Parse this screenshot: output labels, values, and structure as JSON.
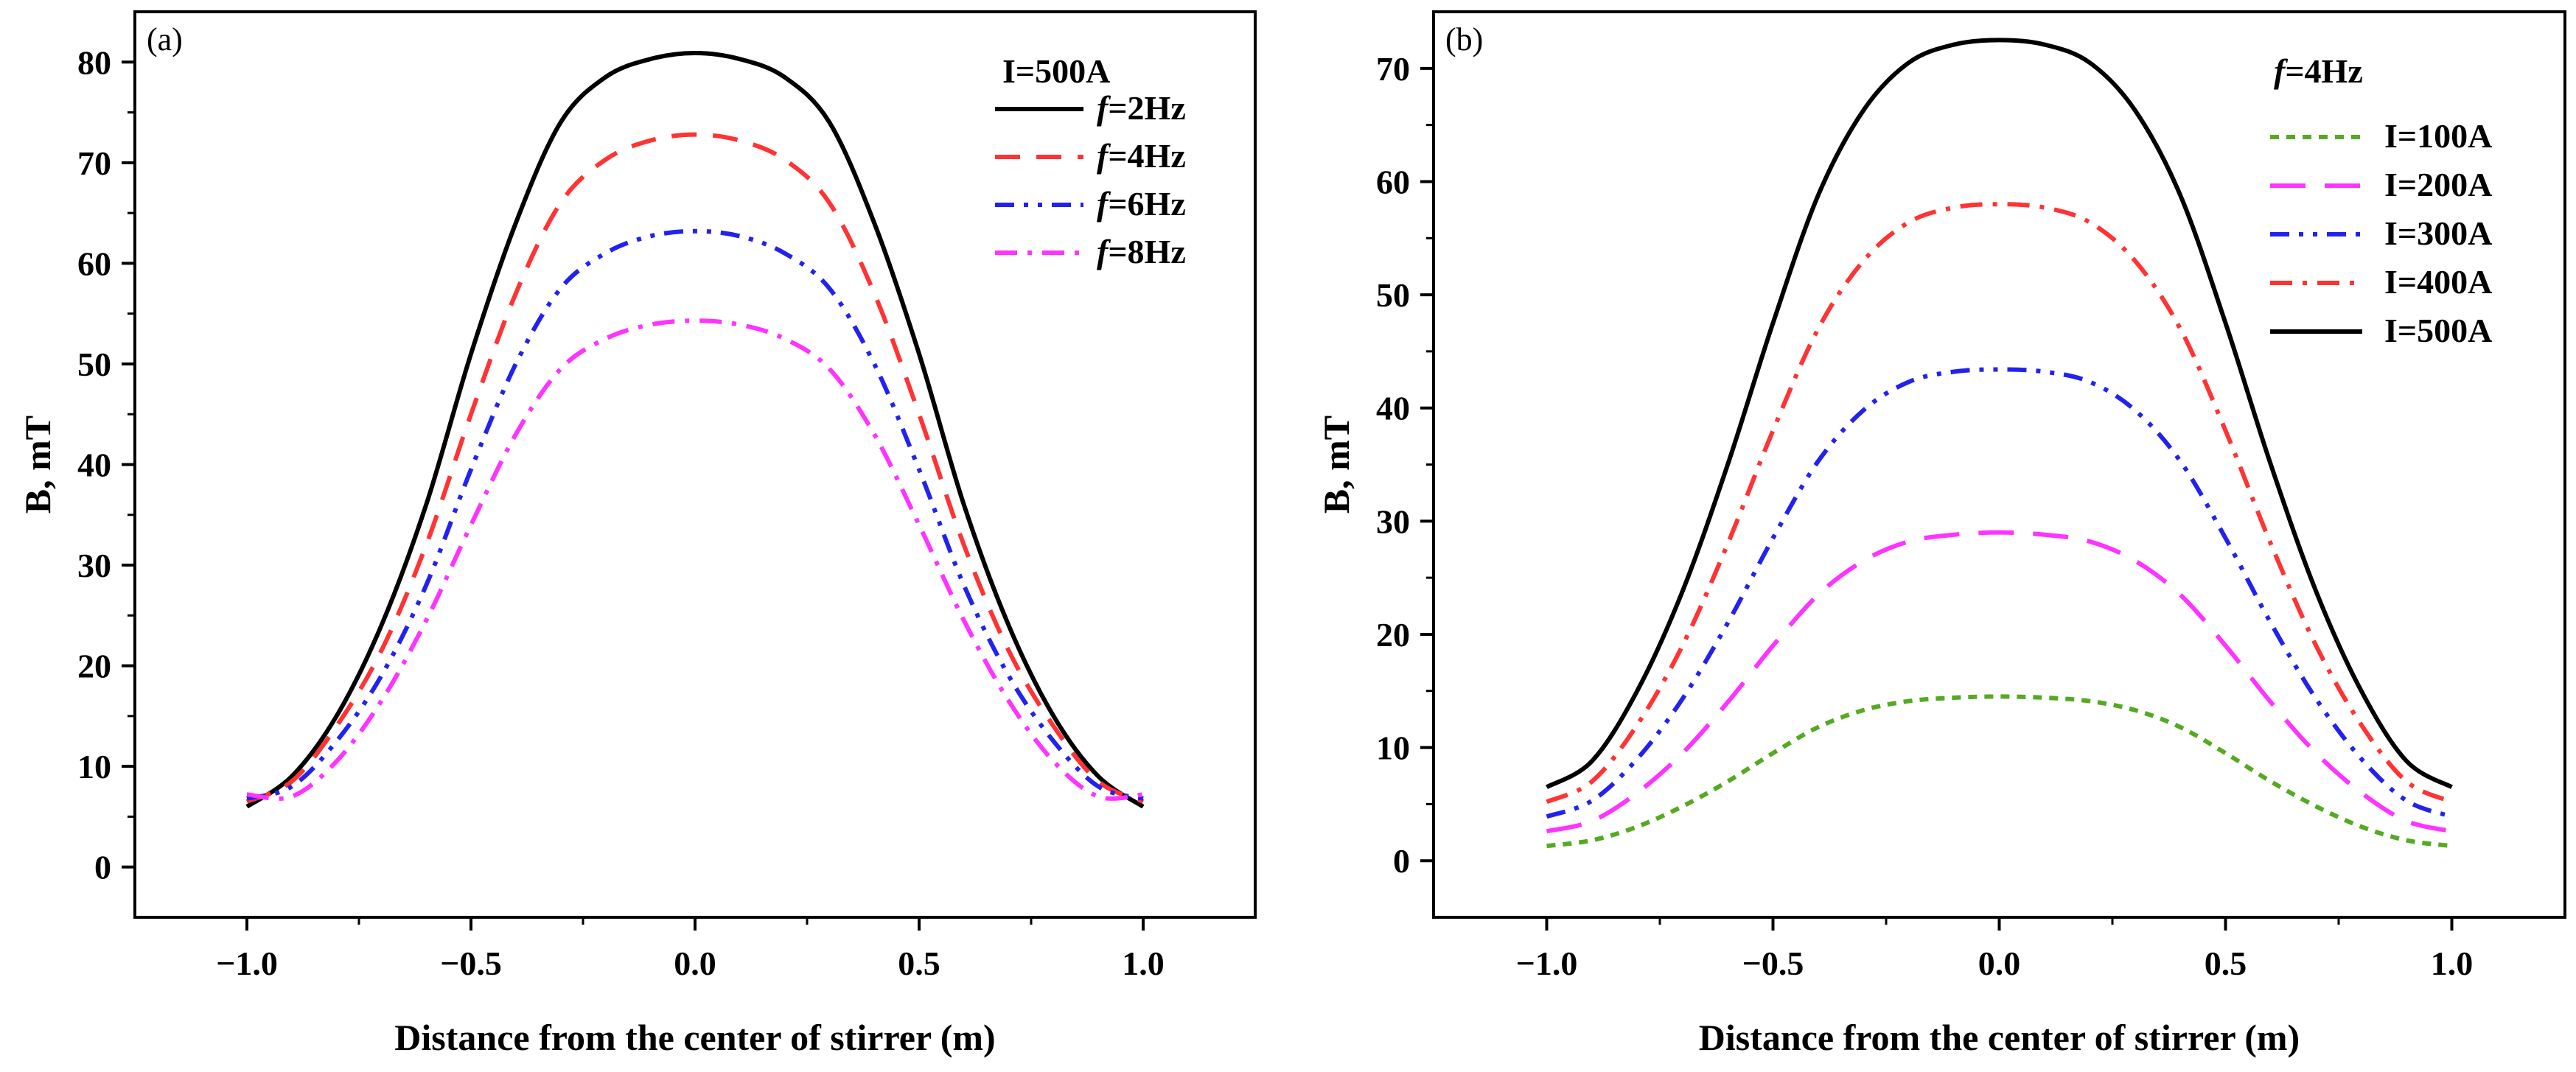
{
  "chart_data": [
    {
      "type": "line",
      "panel_label": "(a)",
      "xlabel": "Distance from the center of stirrer (m)",
      "ylabel": "B, mT",
      "xlim": [
        -1.25,
        1.25
      ],
      "ylim": [
        -5,
        85
      ],
      "xticks": [
        -1.0,
        -0.5,
        0.0,
        0.5,
        1.0
      ],
      "xtick_labels": [
        "−1.0",
        "−0.5",
        "0.0",
        "0.5",
        "1.0"
      ],
      "yticks": [
        0,
        10,
        20,
        30,
        40,
        50,
        60,
        70,
        80
      ],
      "ytick_labels": [
        "0",
        "10",
        "20",
        "30",
        "40",
        "50",
        "60",
        "70",
        "80"
      ],
      "grid": false,
      "legend_position": "top-right",
      "legend_title": "I=500A",
      "x": [
        -1.0,
        -0.9,
        -0.8,
        -0.7,
        -0.6,
        -0.5,
        -0.4,
        -0.3,
        -0.2,
        -0.1,
        0.0,
        0.1,
        0.2,
        0.3,
        0.4,
        0.5,
        0.6,
        0.7,
        0.8,
        0.9,
        1.0
      ],
      "series": [
        {
          "name_prefix": "f",
          "name_suffix": "=2Hz",
          "color": "#000000",
          "dash": "solid",
          "values": [
            6,
            9,
            15,
            24,
            36,
            51,
            64,
            74,
            78.5,
            80.3,
            80.9,
            80.3,
            78.5,
            74,
            64,
            51,
            36,
            24,
            15,
            9,
            6
          ]
        },
        {
          "name_prefix": "f",
          "name_suffix": "=4Hz",
          "color": "#ff3333",
          "dash": "dashed",
          "values": [
            6.5,
            8.5,
            14,
            21.5,
            32,
            45,
            57,
            66,
            70.3,
            72.2,
            72.8,
            72.2,
            70.3,
            66,
            57,
            45,
            32,
            21.5,
            14,
            8.5,
            6.5
          ]
        },
        {
          "name_prefix": "f",
          "name_suffix": "=6Hz",
          "color": "#2222ee",
          "dash": "dashdotdot",
          "values": [
            6.8,
            8,
            12.5,
            19,
            28,
            39.5,
            50,
            57.5,
            61,
            62.7,
            63.2,
            62.7,
            61,
            57.5,
            50,
            39.5,
            28,
            19,
            12.5,
            8,
            6.8
          ]
        },
        {
          "name_prefix": "f",
          "name_suffix": "=8Hz",
          "color": "#ff33ff",
          "dash": "dashdot",
          "values": [
            7.2,
            7,
            10.5,
            16.5,
            24.5,
            34,
            43,
            49.5,
            52.5,
            53.9,
            54.3,
            53.9,
            52.5,
            49.5,
            43,
            34,
            24.5,
            16.5,
            10.5,
            7,
            7.2
          ]
        }
      ]
    },
    {
      "type": "line",
      "panel_label": "(b)",
      "xlabel": "Distance from the center of stirrer (m)",
      "ylabel": "B, mT",
      "xlim": [
        -1.25,
        1.25
      ],
      "ylim": [
        -5,
        75
      ],
      "xticks": [
        -1.0,
        -0.5,
        0.0,
        0.5,
        1.0
      ],
      "xtick_labels": [
        "−1.0",
        "−0.5",
        "0.0",
        "0.5",
        "1.0"
      ],
      "yticks": [
        0,
        10,
        20,
        30,
        40,
        50,
        60,
        70
      ],
      "ytick_labels": [
        "0",
        "10",
        "20",
        "30",
        "40",
        "50",
        "60",
        "70"
      ],
      "grid": false,
      "legend_position": "top-right",
      "legend_title_prefix": "f",
      "legend_title_suffix": "=4Hz",
      "x": [
        -1.0,
        -0.9,
        -0.8,
        -0.7,
        -0.6,
        -0.5,
        -0.4,
        -0.3,
        -0.2,
        -0.1,
        0.0,
        0.1,
        0.2,
        0.3,
        0.4,
        0.5,
        0.6,
        0.7,
        0.8,
        0.9,
        1.0
      ],
      "series": [
        {
          "name": "I=100A",
          "color": "#55aa22",
          "dash": "dotted",
          "values": [
            1.3,
            1.8,
            3,
            4.8,
            7,
            9.5,
            11.8,
            13.3,
            14.1,
            14.4,
            14.5,
            14.4,
            14.1,
            13.3,
            11.8,
            9.5,
            7,
            4.8,
            3,
            1.8,
            1.3
          ]
        },
        {
          "name": "I=200A",
          "color": "#ff33ff",
          "dash": "longdash",
          "values": [
            2.6,
            3.5,
            6,
            9.5,
            14,
            19,
            23.5,
            26.5,
            28.2,
            28.8,
            29,
            28.8,
            28.2,
            26.5,
            23.5,
            19,
            14,
            9.5,
            6,
            3.5,
            2.6
          ]
        },
        {
          "name": "I=300A",
          "color": "#2222ee",
          "dash": "dashdotdot",
          "values": [
            3.9,
            5.3,
            9,
            14.3,
            21,
            28.5,
            35.3,
            39.8,
            42.3,
            43.2,
            43.4,
            43.2,
            42.3,
            39.8,
            35.3,
            28.5,
            21,
            14.3,
            9,
            5.3,
            3.9
          ]
        },
        {
          "name": "I=400A",
          "color": "#ff3333",
          "dash": "dashdot",
          "values": [
            5.2,
            7,
            12,
            19,
            28,
            38,
            47,
            53,
            56.4,
            57.7,
            58,
            57.7,
            56.4,
            53,
            47,
            38,
            28,
            19,
            12,
            7,
            5.2
          ]
        },
        {
          "name": "I=500A",
          "color": "#000000",
          "dash": "solid",
          "values": [
            6.5,
            8.8,
            15,
            23.8,
            35,
            47.5,
            58.8,
            66.3,
            70.5,
            72.1,
            72.5,
            72.1,
            70.5,
            66.3,
            58.8,
            47.5,
            35,
            23.8,
            15,
            8.8,
            6.5
          ]
        }
      ]
    }
  ]
}
